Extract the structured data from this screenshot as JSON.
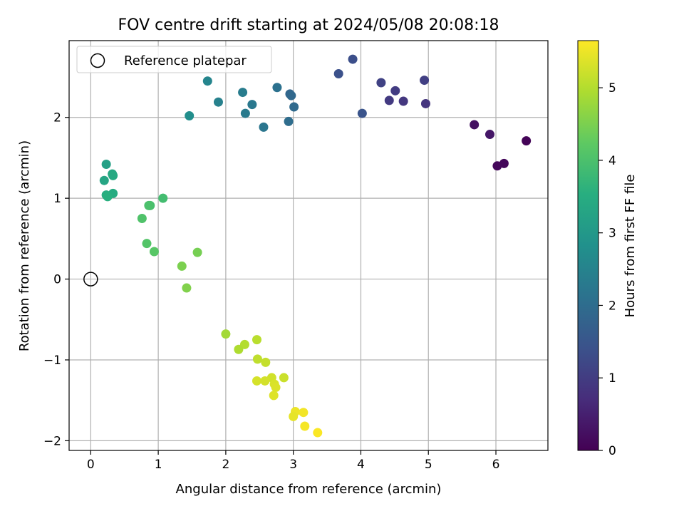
{
  "chart_data": {
    "type": "scatter",
    "title": "FOV centre drift starting at 2024/05/08 20:08:18",
    "xlabel": "Angular distance from reference (arcmin)",
    "ylabel": "Rotation from reference (arcmin)",
    "xlim": [
      -0.32,
      6.77
    ],
    "ylim": [
      -2.12,
      2.95
    ],
    "x_ticks": [
      0,
      1,
      2,
      3,
      4,
      5,
      6
    ],
    "y_ticks": [
      -2,
      -1,
      0,
      1,
      2
    ],
    "grid": true,
    "legend": {
      "placement": "top-left",
      "entries": [
        "Reference platepar"
      ]
    },
    "reference_point": {
      "x": 0,
      "y": 0
    },
    "colorbar": {
      "label": "Hours from first FF file",
      "range": [
        0,
        5.65
      ],
      "ticks": [
        0,
        1,
        2,
        3,
        4,
        5
      ],
      "colormap": "viridis"
    },
    "series": [
      {
        "x": [
          6.45,
          5.68,
          6.12,
          6.02,
          5.91,
          4.96,
          4.94,
          4.63,
          4.51,
          4.42,
          4.3,
          3.88,
          3.67,
          4.02,
          2.95,
          2.97,
          3.01,
          2.93,
          2.76,
          2.56,
          2.39,
          2.29,
          2.25,
          1.89,
          1.73,
          1.46,
          0.23,
          0.2,
          0.32,
          0.33,
          0.33,
          0.23,
          0.25,
          1.07,
          0.88,
          0.86,
          0.76,
          0.83,
          0.94,
          1.58,
          1.35,
          1.42,
          2.0,
          2.46,
          2.28,
          2.19,
          2.47,
          2.59,
          2.86,
          2.68,
          2.46,
          2.58,
          2.72,
          2.74,
          2.71,
          3.03,
          3.15,
          3.0,
          3.17,
          3.36
        ],
        "y": [
          1.71,
          1.91,
          1.43,
          1.4,
          1.79,
          2.17,
          2.46,
          2.2,
          2.33,
          2.21,
          2.43,
          2.72,
          2.54,
          2.05,
          2.29,
          2.27,
          2.13,
          1.95,
          2.37,
          1.88,
          2.16,
          2.05,
          2.31,
          2.19,
          2.45,
          2.02,
          1.42,
          1.22,
          1.3,
          1.28,
          1.06,
          1.04,
          1.02,
          1.0,
          0.91,
          0.91,
          0.75,
          0.44,
          0.34,
          0.33,
          0.16,
          -0.11,
          -0.68,
          -0.75,
          -0.81,
          -0.87,
          -0.99,
          -1.03,
          -1.22,
          -1.22,
          -1.26,
          -1.26,
          -1.3,
          -1.34,
          -1.44,
          -1.64,
          -1.65,
          -1.7,
          -1.82,
          -1.9
        ],
        "hours": [
          0.05,
          0.25,
          0.1,
          0.12,
          0.35,
          0.85,
          1.05,
          0.9,
          1.0,
          0.95,
          1.1,
          1.35,
          1.4,
          1.45,
          1.85,
          1.9,
          1.95,
          2.0,
          2.1,
          2.2,
          2.25,
          2.3,
          2.35,
          2.45,
          2.55,
          2.75,
          3.2,
          3.3,
          3.35,
          3.4,
          3.45,
          3.5,
          3.55,
          3.9,
          3.95,
          4.0,
          4.05,
          4.1,
          4.15,
          4.45,
          4.5,
          4.55,
          4.85,
          5.05,
          5.0,
          4.95,
          5.1,
          5.15,
          5.2,
          5.25,
          5.3,
          5.28,
          5.32,
          5.35,
          5.38,
          5.5,
          5.55,
          5.45,
          5.58,
          5.62
        ]
      }
    ]
  }
}
